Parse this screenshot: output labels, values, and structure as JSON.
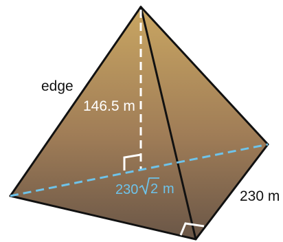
{
  "labels": {
    "edge": "edge",
    "height": "146.5 m",
    "diagonal_coefficient": "230",
    "diagonal_radicand": "2",
    "diagonal_unit": "m",
    "base_side": "230 m"
  },
  "colors": {
    "face_top": "#c7a461",
    "face_bottom": "#6e5849",
    "edge_line": "#111111",
    "height_line": "#ffffff",
    "diagonal_line": "#6ec3ea",
    "diagonal_text": "#6ec3ea",
    "height_text": "#ffffff",
    "outside_text": "#111111"
  }
}
